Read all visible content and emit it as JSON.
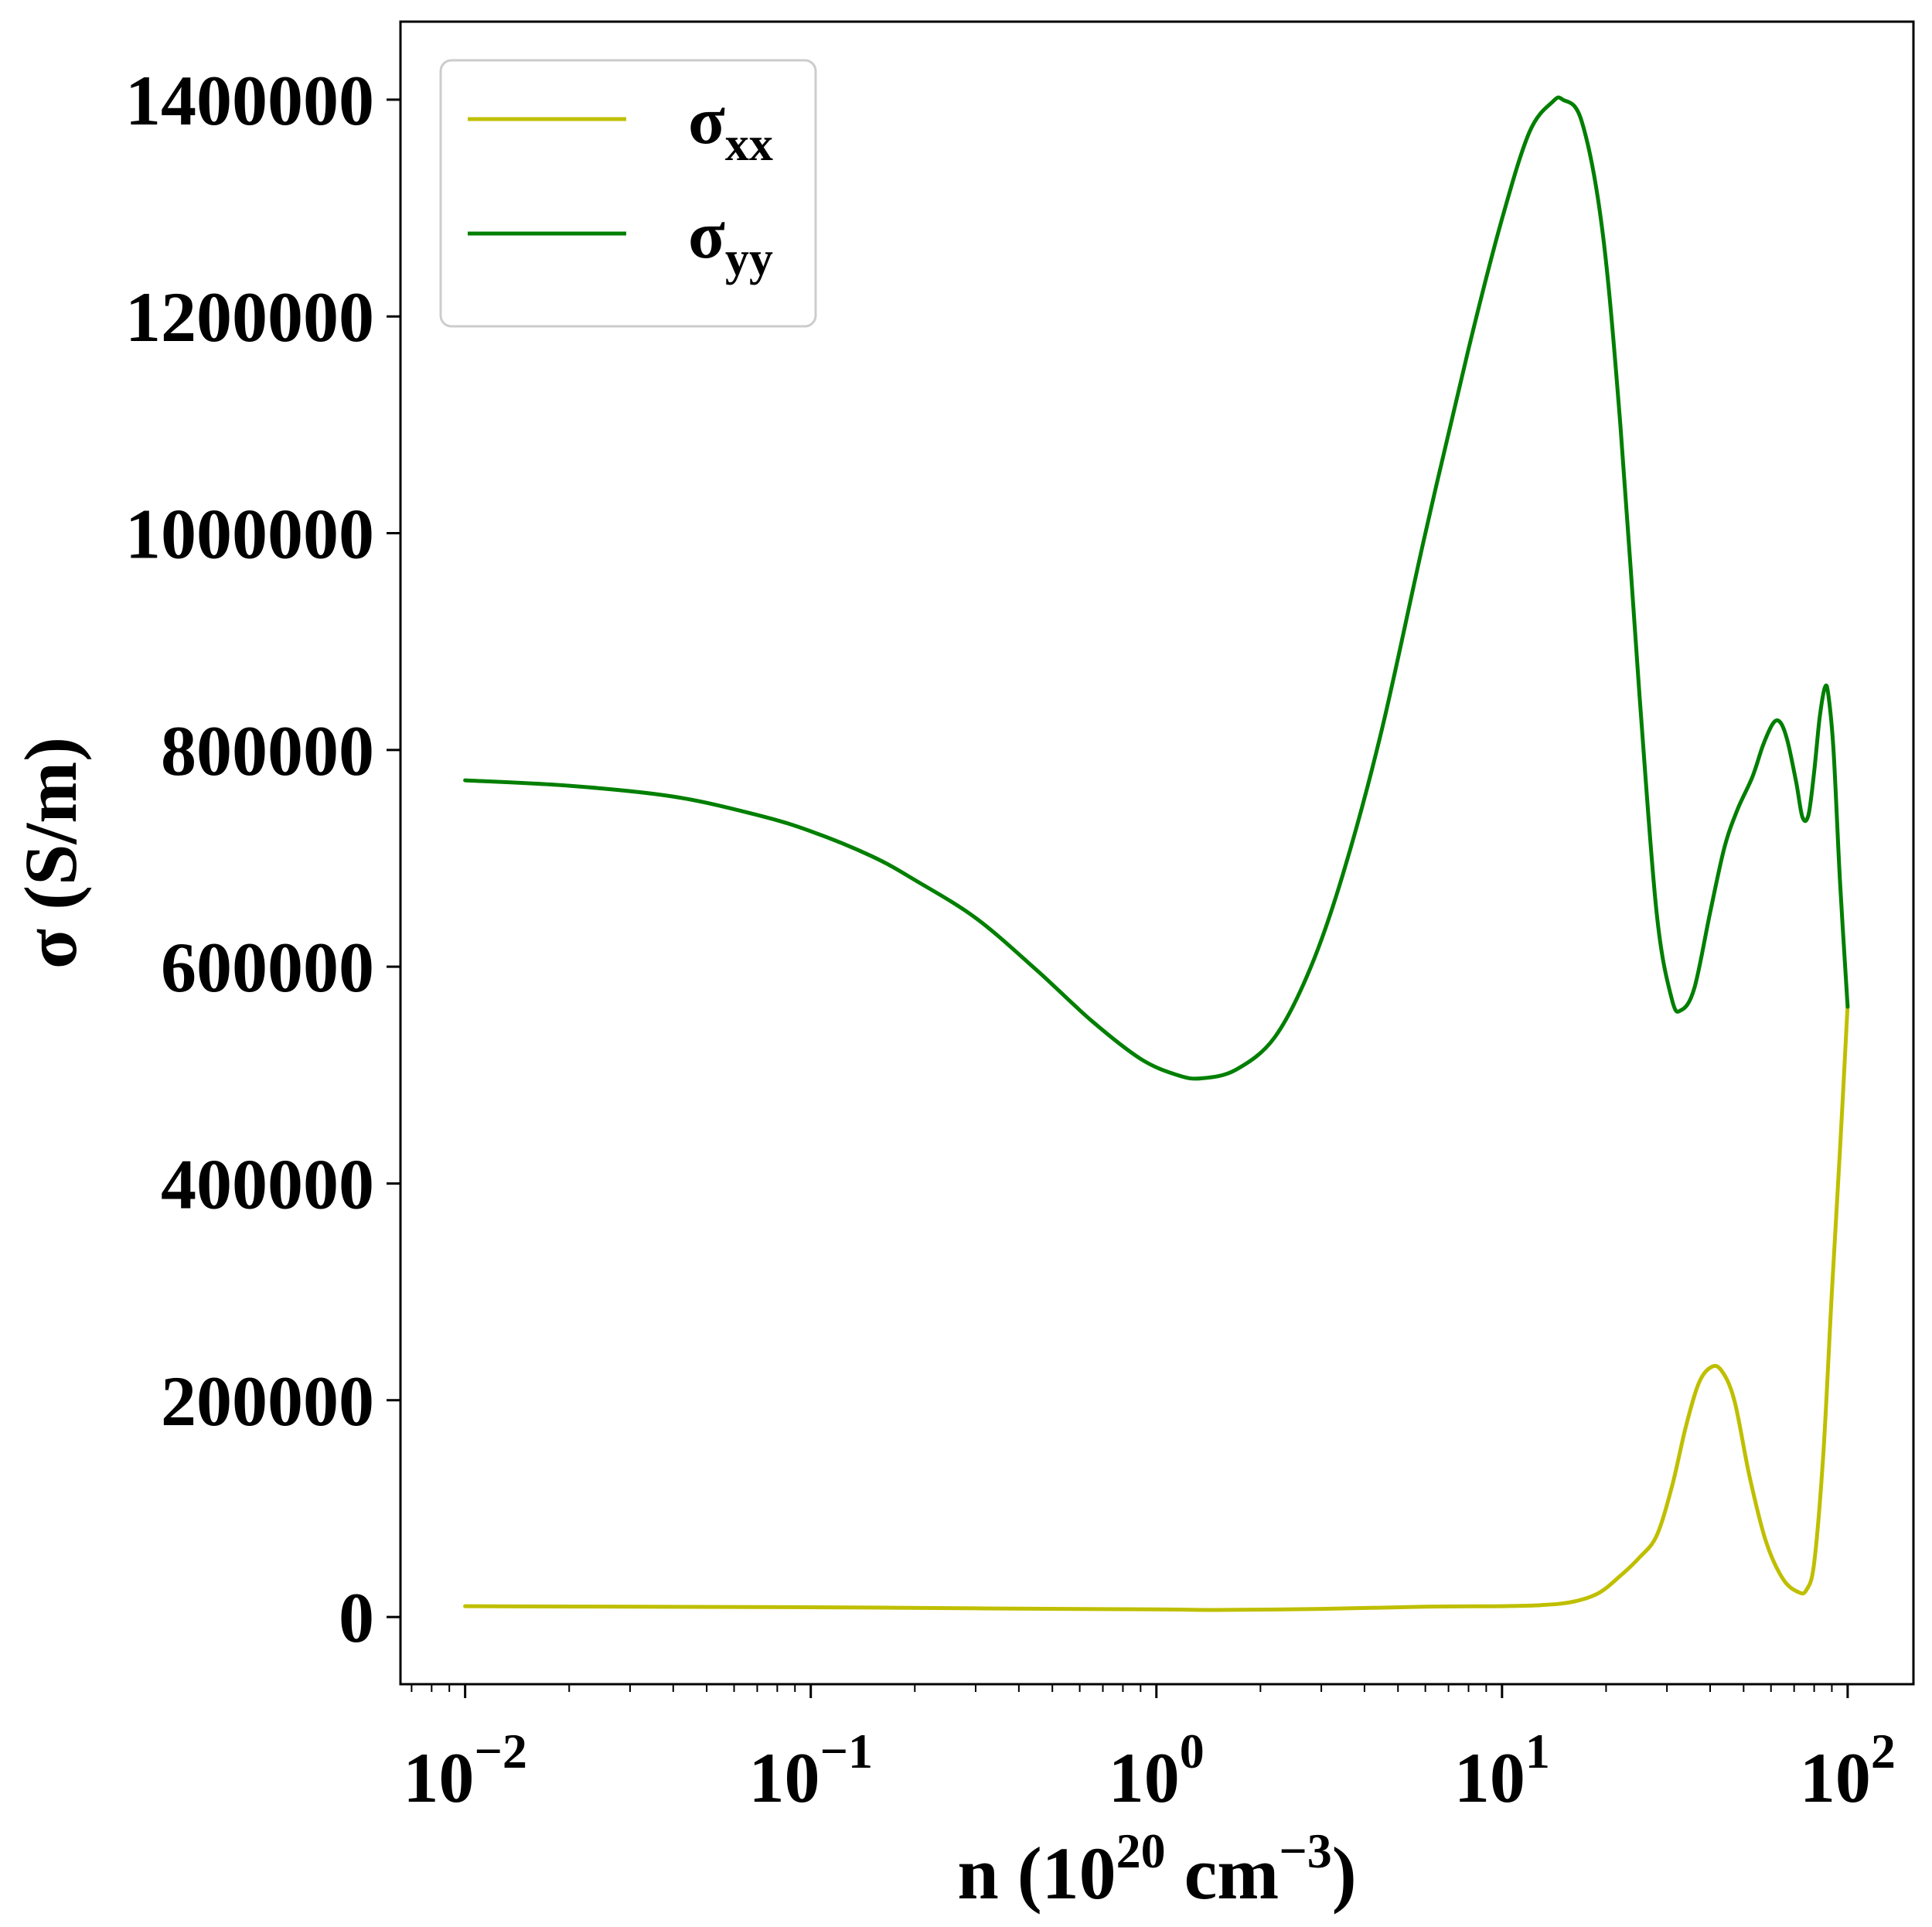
{
  "chart_data": {
    "type": "line",
    "xscale": "log",
    "xlabel": {
      "base": "n (10",
      "sup1": "20",
      "mid": " cm",
      "sup2": "−3",
      "end": ")"
    },
    "ylabel": "σ (S/m)",
    "xlim": [
      0.0065,
      155
    ],
    "ylim": [
      -62000,
      1472000
    ],
    "grid": false,
    "legend_placement": "top-left",
    "x_ticks": [
      {
        "value": 0.01,
        "base": "10",
        "exp": "−2"
      },
      {
        "value": 0.1,
        "base": "10",
        "exp": "−1"
      },
      {
        "value": 1,
        "base": "10",
        "exp": "0"
      },
      {
        "value": 10,
        "base": "10",
        "exp": "1"
      },
      {
        "value": 100,
        "base": "10",
        "exp": "2"
      }
    ],
    "y_ticks": [
      0,
      200000,
      400000,
      600000,
      800000,
      1000000,
      1200000,
      1400000
    ],
    "y_tick_labels": [
      "0",
      "200000",
      "400000",
      "600000",
      "800000",
      "1000000",
      "1200000",
      "1400000"
    ],
    "series": [
      {
        "name": "σ",
        "subscript": "xx",
        "color": "#bfbf00",
        "points": [
          [
            0.01,
            10000
          ],
          [
            0.03,
            9500
          ],
          [
            0.1,
            9000
          ],
          [
            0.3,
            8000
          ],
          [
            1.0,
            7000
          ],
          [
            1.5,
            6500
          ],
          [
            3.0,
            7500
          ],
          [
            6.0,
            9500
          ],
          [
            10,
            10000
          ],
          [
            13,
            11000
          ],
          [
            16,
            14000
          ],
          [
            19,
            22000
          ],
          [
            22,
            38000
          ],
          [
            25,
            55000
          ],
          [
            28,
            75000
          ],
          [
            31,
            120000
          ],
          [
            34,
            175000
          ],
          [
            37,
            215000
          ],
          [
            40,
            230000
          ],
          [
            43,
            228000
          ],
          [
            47,
            200000
          ],
          [
            52,
            130000
          ],
          [
            58,
            70000
          ],
          [
            65,
            35000
          ],
          [
            72,
            23000
          ],
          [
            76,
            25000
          ],
          [
            80,
            50000
          ],
          [
            85,
            150000
          ],
          [
            90,
            300000
          ],
          [
            95,
            430000
          ],
          [
            100,
            565000
          ]
        ]
      },
      {
        "name": "σ",
        "subscript": "yy",
        "color": "#007f00",
        "points": [
          [
            0.01,
            772000
          ],
          [
            0.02,
            767000
          ],
          [
            0.04,
            757000
          ],
          [
            0.07,
            740000
          ],
          [
            0.1,
            725000
          ],
          [
            0.15,
            702000
          ],
          [
            0.2,
            680000
          ],
          [
            0.3,
            645000
          ],
          [
            0.45,
            597000
          ],
          [
            0.65,
            550000
          ],
          [
            0.9,
            515000
          ],
          [
            1.15,
            500000
          ],
          [
            1.35,
            497000
          ],
          [
            1.7,
            505000
          ],
          [
            2.2,
            535000
          ],
          [
            2.8,
            600000
          ],
          [
            3.5,
            690000
          ],
          [
            4.5,
            820000
          ],
          [
            6.0,
            1000000
          ],
          [
            8.0,
            1170000
          ],
          [
            10,
            1290000
          ],
          [
            12,
            1370000
          ],
          [
            14,
            1398000
          ],
          [
            15,
            1400000
          ],
          [
            17,
            1380000
          ],
          [
            19.5,
            1280000
          ],
          [
            22,
            1100000
          ],
          [
            25,
            850000
          ],
          [
            28,
            650000
          ],
          [
            31,
            570000
          ],
          [
            33,
            560000
          ],
          [
            36,
            580000
          ],
          [
            40,
            650000
          ],
          [
            44,
            710000
          ],
          [
            48,
            745000
          ],
          [
            53,
            775000
          ],
          [
            57,
            805000
          ],
          [
            61,
            825000
          ],
          [
            64,
            825000
          ],
          [
            67,
            808000
          ],
          [
            71,
            770000
          ],
          [
            74,
            738000
          ],
          [
            77,
            740000
          ],
          [
            80,
            780000
          ],
          [
            83,
            830000
          ],
          [
            86,
            858000
          ],
          [
            88,
            850000
          ],
          [
            91,
            800000
          ],
          [
            95,
            680000
          ],
          [
            100,
            563000
          ]
        ]
      }
    ]
  }
}
